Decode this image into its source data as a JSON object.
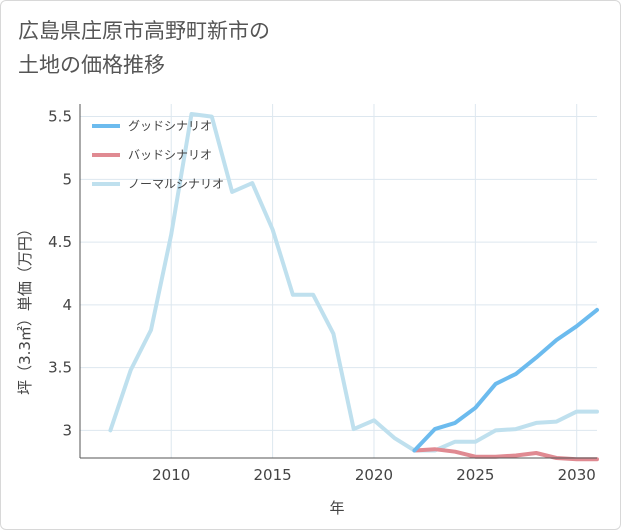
{
  "title": "広島県庄原市高野町新市の土地の価格推移",
  "chart_data": {
    "type": "line",
    "title": "広島県庄原市高野町新市の土地の価格推移",
    "xlabel": "年",
    "ylabel": "坪（3.3㎡）単価（万円）",
    "xlim": [
      2005.5,
      2031
    ],
    "ylim": [
      2.78,
      5.6
    ],
    "xticks": [
      2010,
      2015,
      2020,
      2025,
      2030
    ],
    "yticks": [
      3,
      3.5,
      4,
      4.5,
      5,
      5.5
    ],
    "ytick_labels": [
      "3",
      "3.5",
      "4",
      "4.5",
      "5",
      "5.5"
    ],
    "grid": true,
    "legend_position": "top-left",
    "series": [
      {
        "name": "グッドシナリオ",
        "color": "#6cbbee",
        "x": [
          2022,
          2023,
          2024,
          2025,
          2026,
          2027,
          2028,
          2029,
          2030,
          2031
        ],
        "y": [
          2.84,
          3.01,
          3.06,
          3.18,
          3.37,
          3.45,
          3.58,
          3.72,
          3.83,
          3.96
        ]
      },
      {
        "name": "バッドシナリオ",
        "color": "#e08a92",
        "x": [
          2022,
          2023,
          2024,
          2025,
          2026,
          2027,
          2028,
          2029,
          2030,
          2031
        ],
        "y": [
          2.84,
          2.85,
          2.83,
          2.79,
          2.79,
          2.8,
          2.82,
          2.78,
          2.77,
          2.77
        ]
      },
      {
        "name": "ノーマルシナリオ",
        "color": "#bfe0ee",
        "x": [
          2007,
          2008,
          2009,
          2010,
          2011,
          2012,
          2013,
          2014,
          2015,
          2016,
          2017,
          2018,
          2019,
          2020,
          2021,
          2022,
          2023,
          2024,
          2025,
          2026,
          2027,
          2028,
          2029,
          2030,
          2031
        ],
        "y": [
          3.0,
          3.48,
          3.8,
          4.56,
          5.52,
          5.5,
          4.9,
          4.97,
          4.6,
          4.08,
          4.08,
          3.77,
          3.01,
          3.08,
          2.94,
          2.84,
          2.84,
          2.91,
          2.91,
          3.0,
          3.01,
          3.06,
          3.07,
          3.15,
          3.15
        ]
      }
    ]
  }
}
